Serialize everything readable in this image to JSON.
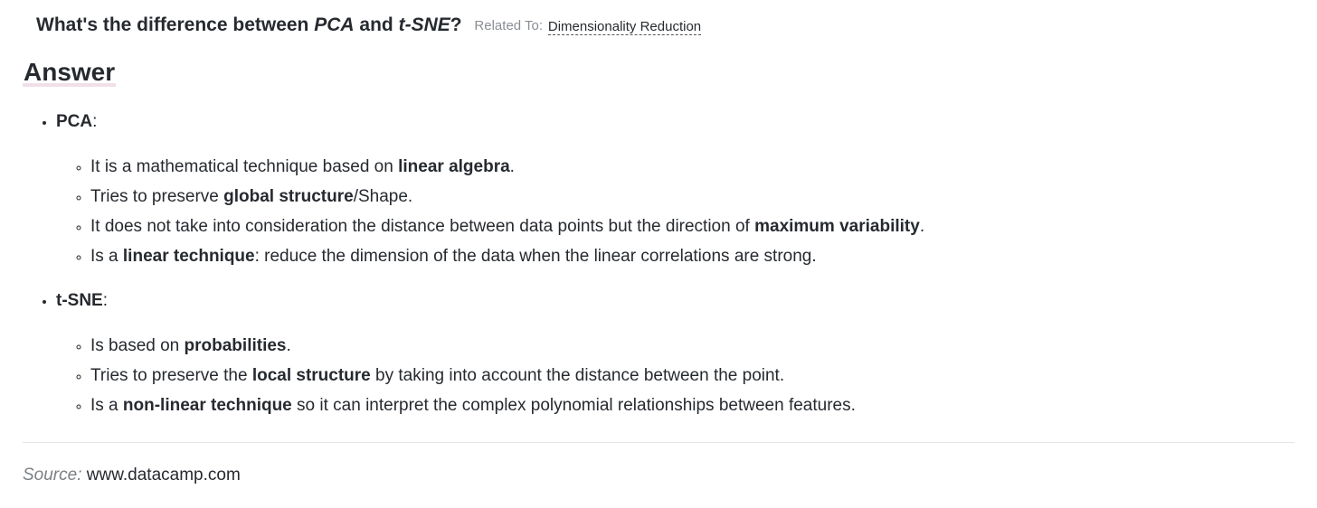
{
  "question": {
    "prefix": "What's the difference between ",
    "term1": "PCA",
    "joiner": " and ",
    "term2": "t-SNE",
    "suffix": "?",
    "related_label": "Related To:",
    "related_link": "Dimensionality Reduction"
  },
  "answer_heading": "Answer",
  "pca": {
    "title": "PCA",
    "colon": ":",
    "items": [
      {
        "pre": "It is a mathematical technique based on ",
        "bold": "linear algebra",
        "post": "."
      },
      {
        "pre": "Tries to preserve ",
        "bold": "global structure",
        "post": "/Shape."
      },
      {
        "pre": "It does not take into consideration the distance between data points but the direction of ",
        "bold": "maximum variability",
        "post": "."
      },
      {
        "pre": "Is a ",
        "bold": "linear technique",
        "post": ": reduce the dimension of the data when the linear correlations are strong."
      }
    ]
  },
  "tsne": {
    "title": "t-SNE",
    "colon": ":",
    "items": [
      {
        "pre": "Is based on ",
        "bold": "probabilities",
        "post": "."
      },
      {
        "pre": "Tries to preserve the ",
        "bold": "local structure",
        "post": " by taking into account the distance between the point."
      },
      {
        "pre": "Is a ",
        "bold": "non-linear technique",
        "post": " so it can interpret the complex polynomial relationships between features."
      }
    ]
  },
  "source": {
    "label": "Source:",
    "value": "www.datacamp.com"
  }
}
